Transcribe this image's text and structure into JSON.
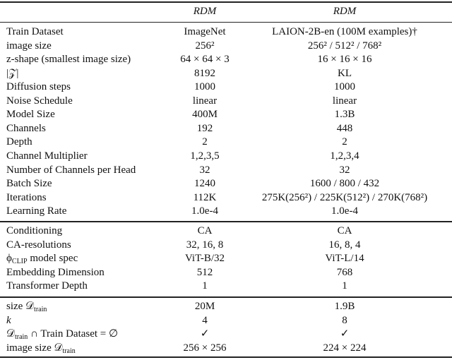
{
  "header": {
    "col1": "RDM",
    "col2": "RDM"
  },
  "sections": [
    [
      {
        "label": "Train Dataset",
        "c1": "ImageNet",
        "c2": "LAION-2B-en (100M examples)†"
      },
      {
        "label": "image size",
        "c1": "256²",
        "c2": "256² / 512² / 768²"
      },
      {
        "label": "z-shape (smallest image size)",
        "c1": "64 × 64 × 3",
        "c2": "16 × 16 × 16"
      },
      {
        "label": "|𝒵|",
        "c1": "8192",
        "c2": "KL"
      },
      {
        "label": "Diffusion steps",
        "c1": "1000",
        "c2": "1000"
      },
      {
        "label": "Noise Schedule",
        "c1": "linear",
        "c2": "linear"
      },
      {
        "label": "Model Size",
        "c1": "400M",
        "c2": "1.3B"
      },
      {
        "label": "Channels",
        "c1": "192",
        "c2": "448"
      },
      {
        "label": "Depth",
        "c1": "2",
        "c2": "2"
      },
      {
        "label": "Channel Multiplier",
        "c1": "1,2,3,5",
        "c2": "1,2,3,4"
      },
      {
        "label": "Number of Channels per Head",
        "c1": "32",
        "c2": "32"
      },
      {
        "label": "Batch Size",
        "c1": "1240",
        "c2": "1600 / 800 / 432"
      },
      {
        "label": "Iterations",
        "c1": "112K",
        "c2": "275K(256²) / 225K(512²) / 270K(768²)"
      },
      {
        "label": "Learning Rate",
        "c1": "1.0e-4",
        "c2": "1.0e-4"
      }
    ],
    [
      {
        "label": "Conditioning",
        "c1": "CA",
        "c2": "CA"
      },
      {
        "label": "CA-resolutions",
        "c1": "32, 16, 8",
        "c2": "16, 8, 4"
      },
      {
        "label": "ϕ",
        "label_sub": "CLIP",
        "label_after": " model spec",
        "c1": "ViT-B/32",
        "c2": "ViT-L/14"
      },
      {
        "label": "Embedding Dimension",
        "c1": "512",
        "c2": "768"
      },
      {
        "label": "Transformer Depth",
        "c1": "1",
        "c2": "1"
      }
    ],
    [
      {
        "label": "size 𝒟",
        "label_sub": "train",
        "c1": "20M",
        "c2": "1.9B"
      },
      {
        "label": "k",
        "c1": "4",
        "c2": "8"
      },
      {
        "label": "𝒟",
        "label_sub": "train",
        "label_after": " ∩ Train Dataset = ∅",
        "c1": "✓",
        "c2": "✓"
      },
      {
        "label": "image size 𝒟",
        "label_sub": "train",
        "c1": "256 × 256",
        "c2": "224 × 224"
      }
    ]
  ]
}
